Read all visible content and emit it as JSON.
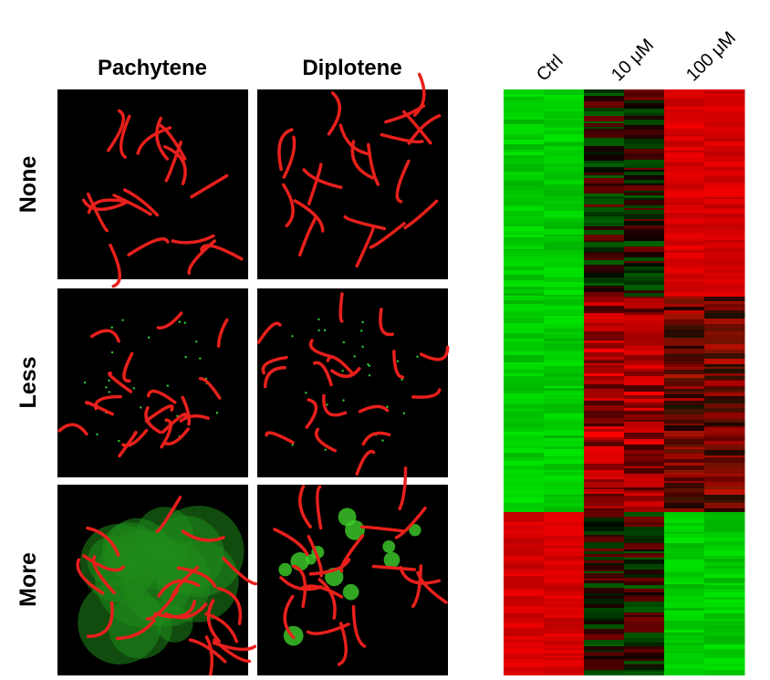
{
  "panels": {
    "column_headers": [
      "Pachytene",
      "Diplotene"
    ],
    "row_labels": [
      "None",
      "Less",
      "More"
    ]
  },
  "heatmap": {
    "column_labels": [
      "Ctrl",
      "10 μM",
      "100 μM"
    ]
  }
}
